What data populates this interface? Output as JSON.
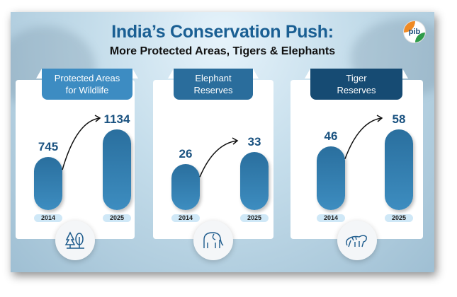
{
  "title": "India’s Conservation Push:",
  "subtitle": "More Protected Areas, Tigers & Elephants",
  "logo_text": "pib",
  "colors": {
    "title": "#1a5f93",
    "bar": "#2f7bb0",
    "ribbons": [
      "#3d8cc2",
      "#2a6d9c",
      "#164b73"
    ]
  },
  "chart_data": [
    {
      "type": "bar",
      "title": "Protected Areas for Wildlife",
      "categories": [
        "2014",
        "2025"
      ],
      "values": [
        745,
        1134
      ],
      "icon": "trees-icon"
    },
    {
      "type": "bar",
      "title": "Elephant Reserves",
      "categories": [
        "2014",
        "2025"
      ],
      "values": [
        26,
        33
      ],
      "icon": "elephant-icon"
    },
    {
      "type": "bar",
      "title": "Tiger Reserves",
      "categories": [
        "2014",
        "2025"
      ],
      "values": [
        46,
        58
      ],
      "icon": "tiger-icon"
    }
  ],
  "ribbon_lines": [
    [
      "Protected Areas",
      "for Wildlife"
    ],
    [
      "Elephant",
      "Reserves"
    ],
    [
      "Tiger",
      "Reserves"
    ]
  ]
}
